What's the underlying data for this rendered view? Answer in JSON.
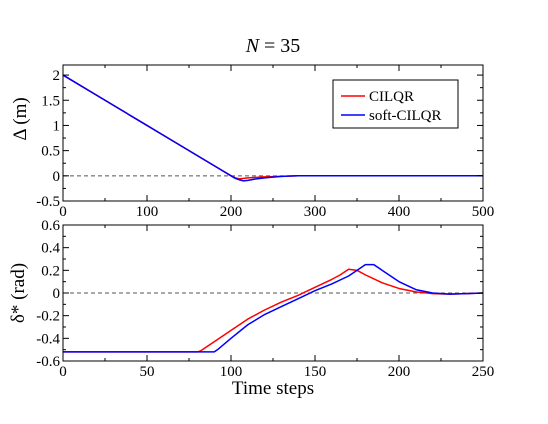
{
  "chart_data": [
    {
      "type": "line",
      "title": "N = 35",
      "title_var": "N",
      "title_rest": " = 35",
      "xlabel": "",
      "ylabel": "Δ (m)",
      "xlim": [
        0,
        500
      ],
      "ylim": [
        -0.5,
        2.2
      ],
      "xticks": [
        0,
        100,
        200,
        300,
        400,
        500
      ],
      "yticks": [
        -0.5,
        0,
        0.5,
        1,
        1.5,
        2
      ],
      "xtick_labels": [
        "0",
        "100",
        "200",
        "300",
        "400",
        "500"
      ],
      "ytick_labels": [
        "-0.5",
        "0",
        "0.5",
        "1",
        "1.5",
        "2"
      ],
      "reference_line": {
        "y": 0,
        "style": "dashed",
        "color": "#555555"
      },
      "legend": {
        "position": "top-right"
      },
      "series": [
        {
          "name": "CILQR",
          "color": "#ff0000",
          "x": [
            0,
            50,
            100,
            150,
            190,
            200,
            205,
            210,
            215,
            220,
            230,
            240,
            260,
            280,
            300,
            400,
            500
          ],
          "y": [
            2.0,
            1.5,
            1.0,
            0.5,
            0.1,
            0.0,
            -0.04,
            -0.06,
            -0.05,
            -0.04,
            -0.03,
            -0.02,
            -0.01,
            0.0,
            0.0,
            0.0,
            0.0
          ]
        },
        {
          "name": "soft-CILQR",
          "color": "#0000ff",
          "x": [
            0,
            50,
            100,
            150,
            190,
            200,
            205,
            210,
            215,
            220,
            230,
            240,
            260,
            280,
            300,
            400,
            500
          ],
          "y": [
            2.0,
            1.5,
            1.0,
            0.5,
            0.1,
            0.0,
            -0.05,
            -0.08,
            -0.1,
            -0.09,
            -0.06,
            -0.04,
            -0.01,
            0.0,
            0.0,
            0.0,
            0.0
          ]
        }
      ]
    },
    {
      "type": "line",
      "xlabel": "Time steps",
      "ylabel": "δ* (rad)",
      "xlim": [
        0,
        250
      ],
      "ylim": [
        -0.6,
        0.6
      ],
      "xticks": [
        0,
        50,
        100,
        150,
        200,
        250
      ],
      "yticks": [
        -0.6,
        -0.4,
        -0.2,
        0,
        0.2,
        0.4,
        0.6
      ],
      "xtick_labels": [
        "0",
        "50",
        "100",
        "150",
        "200",
        "250"
      ],
      "ytick_labels": [
        "-0.6",
        "-0.4",
        "-0.2",
        "0",
        "0.2",
        "0.4",
        "0.6"
      ],
      "reference_line": {
        "y": 0,
        "style": "dashed",
        "color": "#555555"
      },
      "series": [
        {
          "name": "CILQR",
          "color": "#ff0000",
          "x": [
            0,
            80,
            82,
            90,
            100,
            110,
            120,
            130,
            140,
            150,
            160,
            165,
            170,
            175,
            180,
            190,
            200,
            210,
            220,
            230,
            240,
            250
          ],
          "y": [
            -0.52,
            -0.52,
            -0.51,
            -0.43,
            -0.33,
            -0.23,
            -0.15,
            -0.08,
            -0.02,
            0.05,
            0.12,
            0.16,
            0.21,
            0.2,
            0.16,
            0.09,
            0.04,
            0.01,
            -0.005,
            -0.01,
            -0.005,
            0.0
          ]
        },
        {
          "name": "soft-CILQR",
          "color": "#0000ff",
          "x": [
            0,
            90,
            92,
            100,
            110,
            120,
            130,
            140,
            150,
            160,
            170,
            175,
            180,
            185,
            190,
            200,
            210,
            220,
            230,
            240,
            250
          ],
          "y": [
            -0.52,
            -0.52,
            -0.5,
            -0.4,
            -0.28,
            -0.19,
            -0.12,
            -0.05,
            0.02,
            0.08,
            0.15,
            0.2,
            0.25,
            0.25,
            0.2,
            0.1,
            0.03,
            0.0,
            -0.01,
            -0.005,
            0.0
          ]
        }
      ]
    }
  ]
}
